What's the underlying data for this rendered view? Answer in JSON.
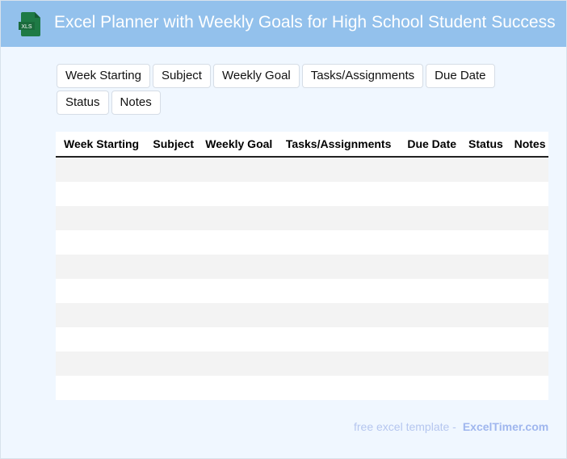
{
  "header": {
    "title": "Excel Planner with Weekly Goals for High School Student Success",
    "logo_text": "XLS",
    "color": "#93c1ec"
  },
  "chips": [
    "Week Starting",
    "Subject",
    "Weekly Goal",
    "Tasks/Assignments",
    "Due Date",
    "Status",
    "Notes"
  ],
  "table": {
    "columns": [
      "Week Starting",
      "Subject",
      "Weekly Goal",
      "Tasks/Assignments",
      "Due Date",
      "Status",
      "Notes"
    ],
    "row_count": 10
  },
  "footer": {
    "text": "free excel template -",
    "brand": "ExcelTimer.com"
  }
}
